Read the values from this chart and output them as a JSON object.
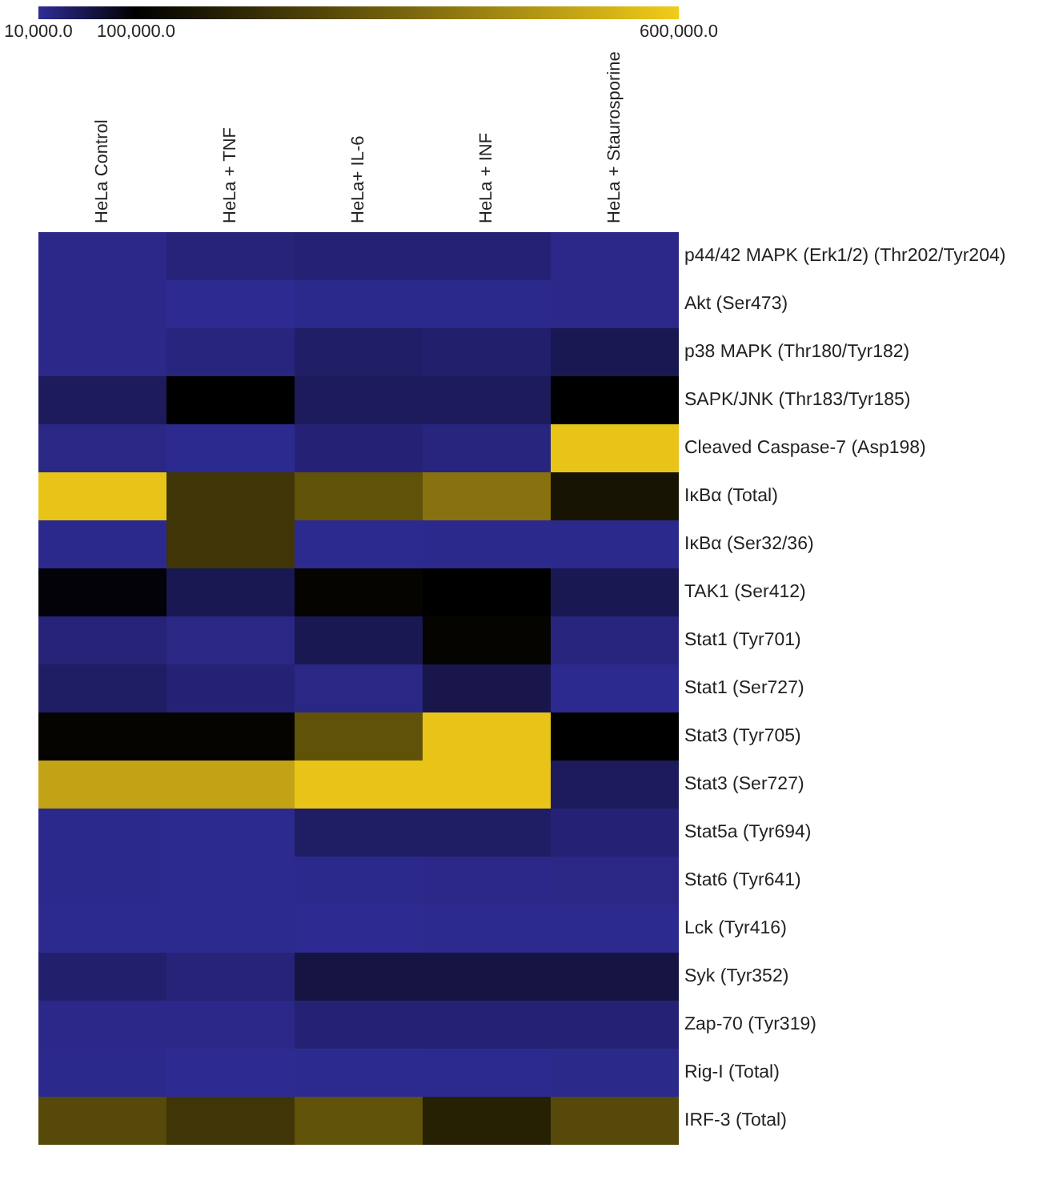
{
  "chart_data": {
    "type": "heatmap",
    "categories": [
      "HeLa Control",
      "HeLa + TNF",
      "HeLa+ IL-6",
      "HeLa + INF",
      "HeLa + Staurosporine"
    ],
    "y_categories": [
      "p44/42 MAPK (Erk1/2) (Thr202/Tyr204)",
      "Akt (Ser473)",
      "p38 MAPK (Thr180/Tyr182)",
      "SAPK/JNK (Thr183/Tyr185)",
      "Cleaved Caspase-7 (Asp198)",
      "IκBα (Total)",
      "IκBα (Ser32/36)",
      "TAK1 (Ser412)",
      "Stat1 (Tyr701)",
      "Stat1 (Ser727)",
      "Stat3 (Tyr705)",
      "Stat3 (Ser727)",
      "Stat5a (Tyr694)",
      "Stat6 (Tyr641)",
      "Lck (Tyr416)",
      "Syk (Tyr352)",
      "Zap-70 (Tyr319)",
      "Rig-I (Total)",
      "IRF-3 (Total)"
    ],
    "cells": [
      [
        18000,
        28000,
        30000,
        30000,
        18000
      ],
      [
        18000,
        13000,
        16000,
        16000,
        18000
      ],
      [
        18000,
        25000,
        38000,
        35000,
        50000
      ],
      [
        45000,
        100000,
        45000,
        45000,
        100000
      ],
      [
        20000,
        14000,
        30000,
        25000,
        580000
      ],
      [
        580000,
        230000,
        300000,
        380000,
        150000
      ],
      [
        16000,
        230000,
        15000,
        16000,
        16000
      ],
      [
        95000,
        50000,
        110000,
        100000,
        50000
      ],
      [
        28000,
        20000,
        50000,
        110000,
        25000
      ],
      [
        40000,
        30000,
        20000,
        55000,
        15000
      ],
      [
        110000,
        110000,
        300000,
        580000,
        100000
      ],
      [
        500000,
        500000,
        580000,
        580000,
        45000
      ],
      [
        16000,
        14000,
        40000,
        40000,
        30000
      ],
      [
        16000,
        14000,
        16000,
        18000,
        20000
      ],
      [
        14000,
        14000,
        13000,
        15000,
        15000
      ],
      [
        35000,
        28000,
        60000,
        60000,
        60000
      ],
      [
        18000,
        18000,
        30000,
        30000,
        30000
      ],
      [
        16000,
        13000,
        14000,
        15000,
        17000
      ],
      [
        280000,
        230000,
        300000,
        180000,
        280000
      ]
    ],
    "clim": [
      10000,
      600000
    ],
    "cticks": [
      {
        "value": 10000,
        "label": "10,000.0"
      },
      {
        "value": 100000,
        "label": "100,000.0"
      },
      {
        "value": 600000,
        "label": "600,000.0"
      }
    ],
    "colors": [
      "#2f2c96",
      "#000000",
      "#f2cc1a"
    ]
  }
}
